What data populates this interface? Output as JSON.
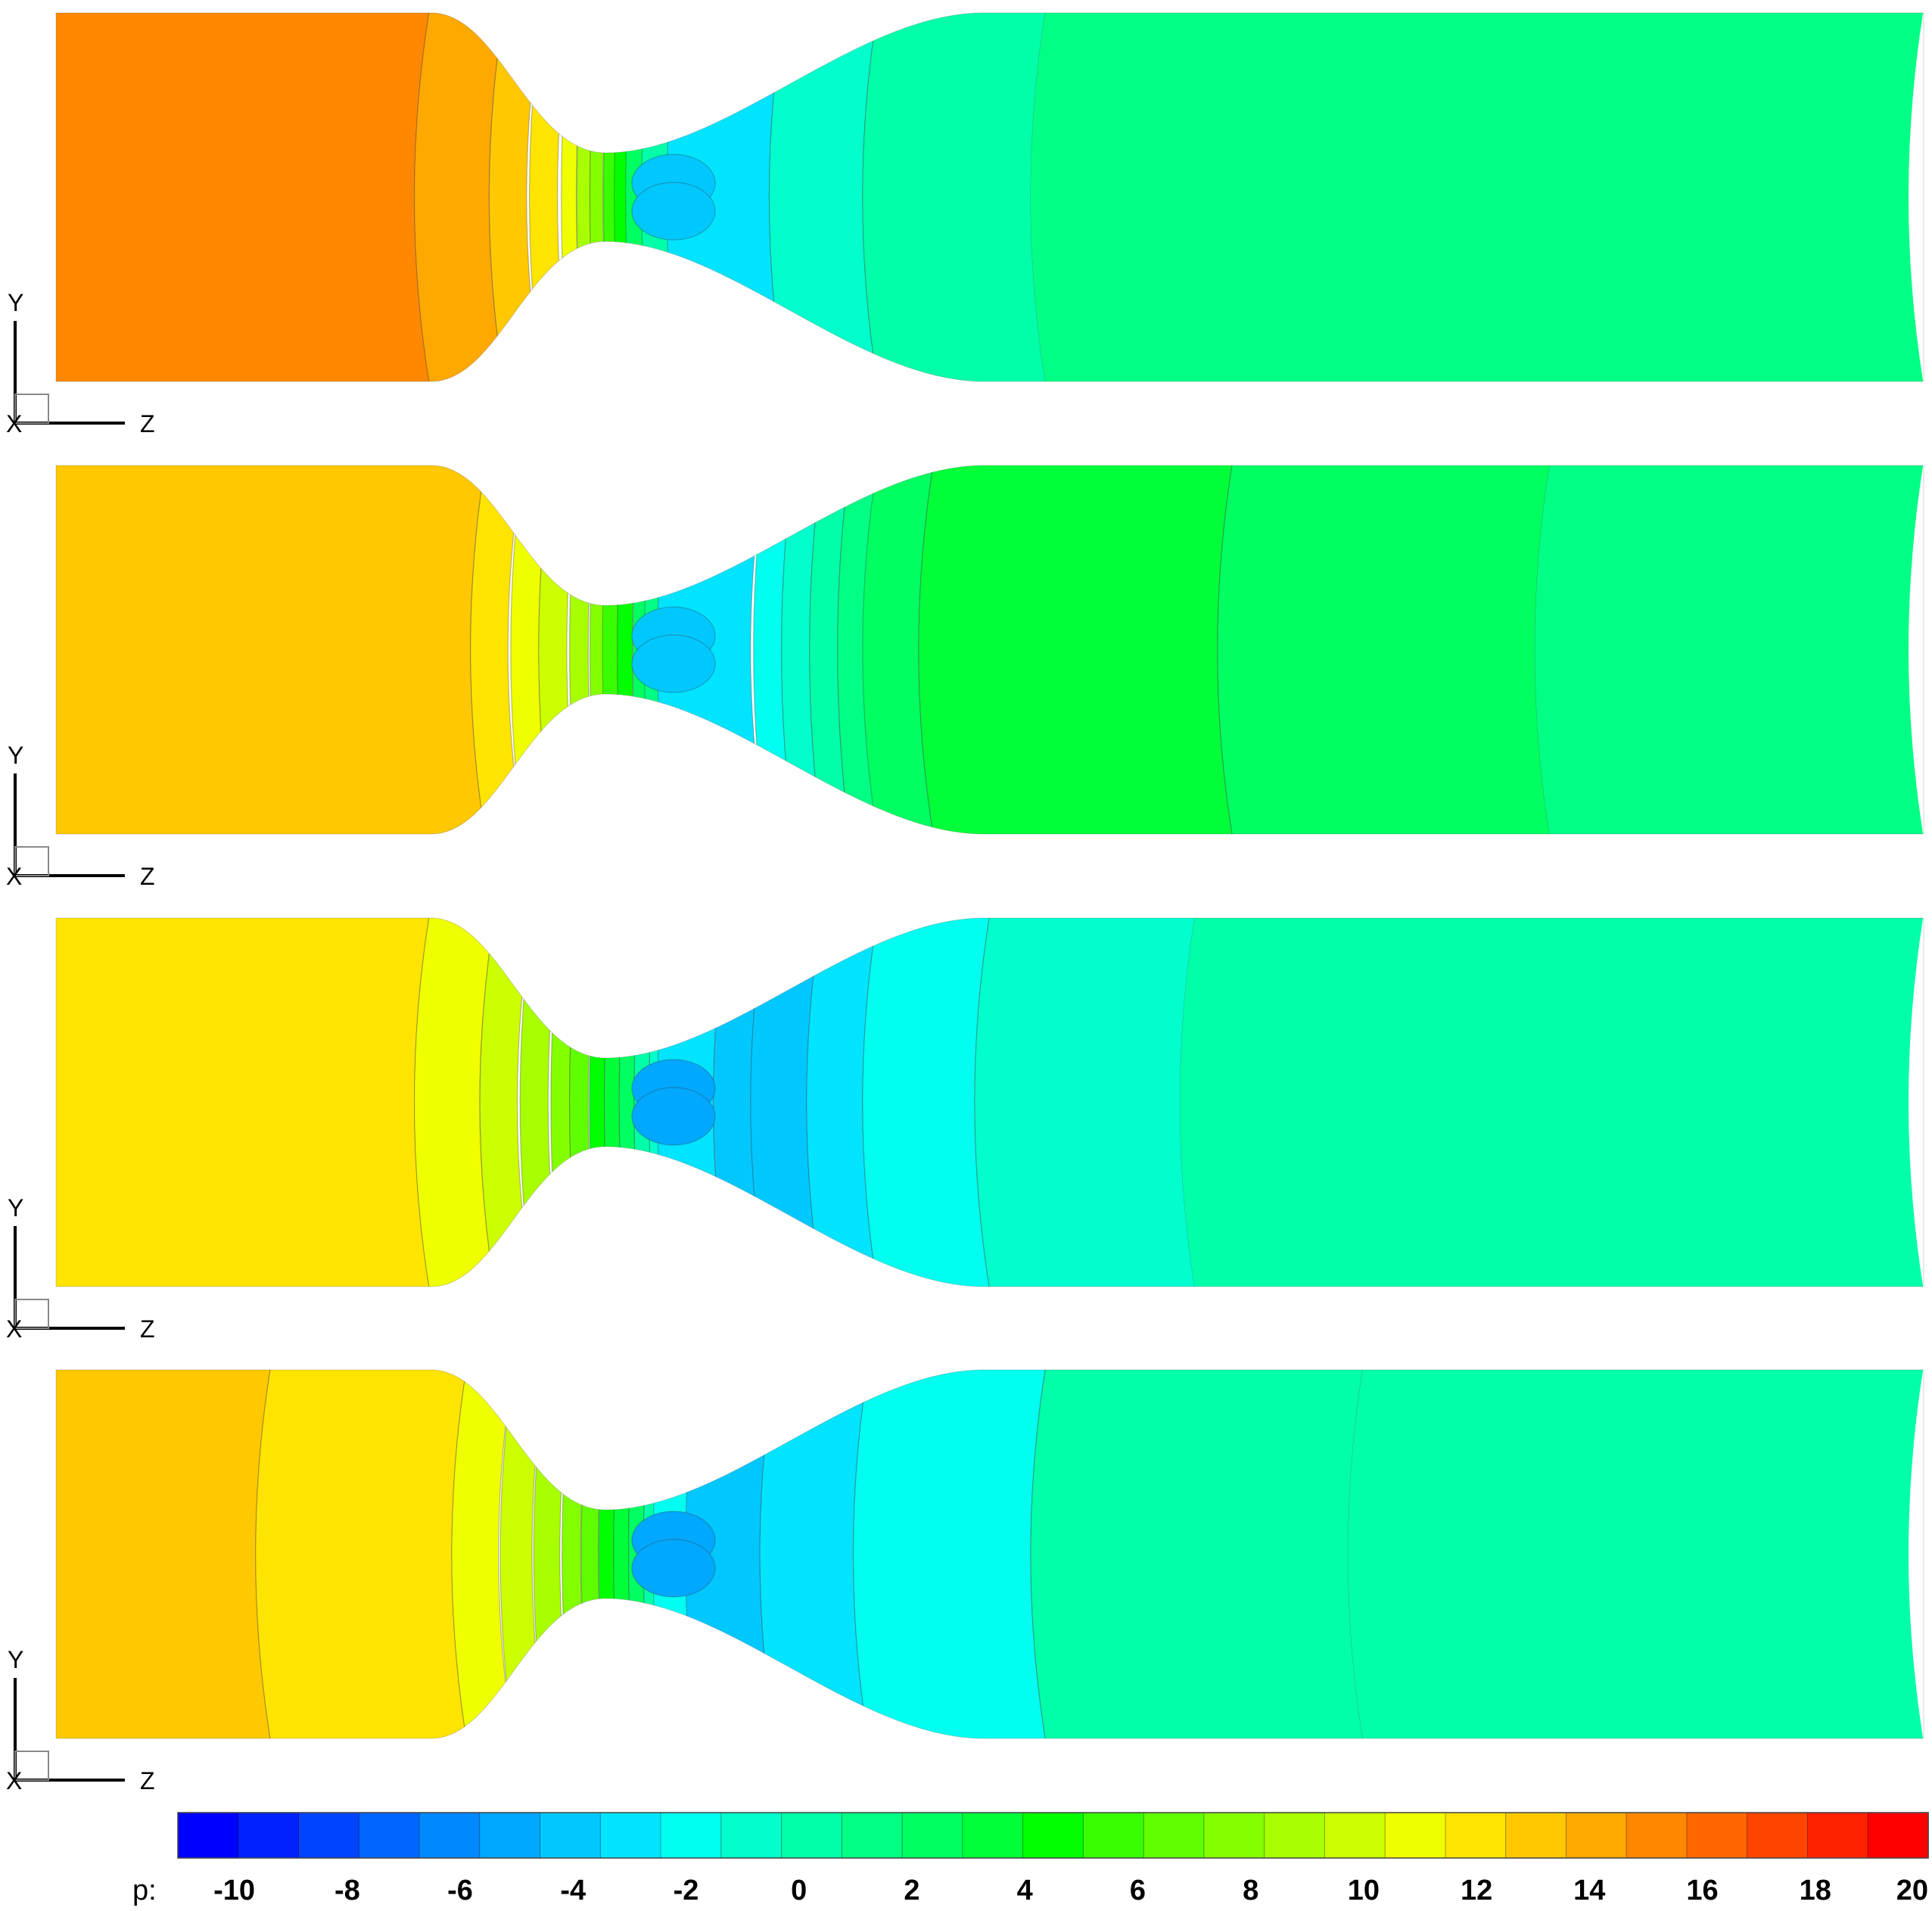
{
  "colormap": [
    "#0000ff",
    "#0022ff",
    "#0044ff",
    "#0066ff",
    "#0088ff",
    "#00a8ff",
    "#00c8ff",
    "#00e4ff",
    "#00fff0",
    "#00ffcc",
    "#00ffa8",
    "#00ff84",
    "#00ff60",
    "#00ff38",
    "#00ff00",
    "#38ff00",
    "#60ff00",
    "#84ff00",
    "#a8ff00",
    "#ccff00",
    "#f0ff00",
    "#ffe400",
    "#ffc800",
    "#ffa800",
    "#ff8800",
    "#ff6600",
    "#ff4400",
    "#ff2200",
    "#ff0000"
  ],
  "panels": [
    {
      "axes": {
        "vertical": "Y",
        "horizontal": "Z",
        "normal": "X"
      },
      "contour_levels": [
        {
          "z_start": 0.0,
          "z_end": 0.2,
          "p": 15.2
        },
        {
          "z_start": 0.2,
          "z_end": 0.24,
          "p": 14.2
        },
        {
          "z_start": 0.24,
          "z_end": 0.26,
          "p": 13.0
        },
        {
          "z_start": 0.26,
          "z_end": 0.275,
          "p": 11.8
        },
        {
          "z_start": 0.275,
          "z_end": 0.283,
          "p": 10.5
        },
        {
          "z_start": 0.283,
          "z_end": 0.29,
          "p": 9.0
        },
        {
          "z_start": 0.29,
          "z_end": 0.297,
          "p": 7.5
        },
        {
          "z_start": 0.297,
          "z_end": 0.303,
          "p": 6.0
        },
        {
          "z_start": 0.303,
          "z_end": 0.31,
          "p": 4.5
        },
        {
          "z_start": 0.31,
          "z_end": 0.32,
          "p": 2.5
        },
        {
          "z_start": 0.32,
          "z_end": 0.335,
          "p": 0.5
        },
        {
          "z_start": 0.335,
          "z_end": 0.39,
          "p": -2.8
        },
        {
          "z_start": 0.39,
          "z_end": 0.44,
          "p": -1.0
        },
        {
          "z_start": 0.44,
          "z_end": 0.53,
          "p": 0.3
        },
        {
          "z_start": 0.53,
          "z_end": 1.0,
          "p": 1.2
        }
      ]
    },
    {
      "axes": {
        "vertical": "Y",
        "horizontal": "Z",
        "normal": "X"
      },
      "contour_levels": [
        {
          "z_start": 0.0,
          "z_end": 0.23,
          "p": 12.8
        },
        {
          "z_start": 0.23,
          "z_end": 0.25,
          "p": 11.6
        },
        {
          "z_start": 0.25,
          "z_end": 0.265,
          "p": 10.6
        },
        {
          "z_start": 0.265,
          "z_end": 0.28,
          "p": 9.6
        },
        {
          "z_start": 0.28,
          "z_end": 0.29,
          "p": 8.4
        },
        {
          "z_start": 0.29,
          "z_end": 0.297,
          "p": 7.2
        },
        {
          "z_start": 0.297,
          "z_end": 0.305,
          "p": 5.8
        },
        {
          "z_start": 0.305,
          "z_end": 0.313,
          "p": 4.2
        },
        {
          "z_start": 0.313,
          "z_end": 0.32,
          "p": 2.6
        },
        {
          "z_start": 0.32,
          "z_end": 0.33,
          "p": 1.0
        },
        {
          "z_start": 0.33,
          "z_end": 0.38,
          "p": -2.6
        },
        {
          "z_start": 0.38,
          "z_end": 0.395,
          "p": -1.6
        },
        {
          "z_start": 0.395,
          "z_end": 0.41,
          "p": -0.6
        },
        {
          "z_start": 0.41,
          "z_end": 0.425,
          "p": 0.4
        },
        {
          "z_start": 0.425,
          "z_end": 0.44,
          "p": 1.4
        },
        {
          "z_start": 0.44,
          "z_end": 0.47,
          "p": 2.4
        },
        {
          "z_start": 0.47,
          "z_end": 0.63,
          "p": 3.4
        },
        {
          "z_start": 0.63,
          "z_end": 0.8,
          "p": 2.8
        },
        {
          "z_start": 0.8,
          "z_end": 1.0,
          "p": 1.6
        }
      ]
    },
    {
      "axes": {
        "vertical": "Y",
        "horizontal": "Z",
        "normal": "X"
      },
      "contour_levels": [
        {
          "z_start": 0.0,
          "z_end": 0.2,
          "p": 11.6
        },
        {
          "z_start": 0.2,
          "z_end": 0.235,
          "p": 10.4
        },
        {
          "z_start": 0.235,
          "z_end": 0.255,
          "p": 9.4
        },
        {
          "z_start": 0.255,
          "z_end": 0.27,
          "p": 8.4
        },
        {
          "z_start": 0.27,
          "z_end": 0.28,
          "p": 7.4
        },
        {
          "z_start": 0.28,
          "z_end": 0.29,
          "p": 6.2
        },
        {
          "z_start": 0.29,
          "z_end": 0.298,
          "p": 5.0
        },
        {
          "z_start": 0.298,
          "z_end": 0.306,
          "p": 3.6
        },
        {
          "z_start": 0.306,
          "z_end": 0.314,
          "p": 2.2
        },
        {
          "z_start": 0.314,
          "z_end": 0.322,
          "p": 0.6
        },
        {
          "z_start": 0.322,
          "z_end": 0.33,
          "p": -1.0
        },
        {
          "z_start": 0.33,
          "z_end": 0.36,
          "p": -3.2
        },
        {
          "z_start": 0.36,
          "z_end": 0.38,
          "p": -4.4
        },
        {
          "z_start": 0.38,
          "z_end": 0.41,
          "p": -3.6
        },
        {
          "z_start": 0.41,
          "z_end": 0.44,
          "p": -2.6
        },
        {
          "z_start": 0.44,
          "z_end": 0.5,
          "p": -1.6
        },
        {
          "z_start": 0.5,
          "z_end": 0.61,
          "p": -0.6
        },
        {
          "z_start": 0.61,
          "z_end": 1.0,
          "p": 0.6
        }
      ]
    },
    {
      "axes": {
        "vertical": "Y",
        "horizontal": "Z",
        "normal": "X"
      },
      "contour_levels": [
        {
          "z_start": 0.0,
          "z_end": 0.115,
          "p": 12.6
        },
        {
          "z_start": 0.115,
          "z_end": 0.22,
          "p": 11.8
        },
        {
          "z_start": 0.22,
          "z_end": 0.245,
          "p": 10.6
        },
        {
          "z_start": 0.245,
          "z_end": 0.262,
          "p": 9.6
        },
        {
          "z_start": 0.262,
          "z_end": 0.276,
          "p": 8.6
        },
        {
          "z_start": 0.276,
          "z_end": 0.286,
          "p": 7.4
        },
        {
          "z_start": 0.286,
          "z_end": 0.295,
          "p": 6.2
        },
        {
          "z_start": 0.295,
          "z_end": 0.303,
          "p": 4.8
        },
        {
          "z_start": 0.303,
          "z_end": 0.311,
          "p": 3.4
        },
        {
          "z_start": 0.311,
          "z_end": 0.319,
          "p": 2.0
        },
        {
          "z_start": 0.319,
          "z_end": 0.327,
          "p": 0.4
        },
        {
          "z_start": 0.327,
          "z_end": 0.345,
          "p": -2.0
        },
        {
          "z_start": 0.345,
          "z_end": 0.385,
          "p": -3.6
        },
        {
          "z_start": 0.385,
          "z_end": 0.435,
          "p": -2.6
        },
        {
          "z_start": 0.435,
          "z_end": 0.53,
          "p": -1.4
        },
        {
          "z_start": 0.53,
          "z_end": 0.7,
          "p": -0.2
        },
        {
          "z_start": 0.7,
          "z_end": 1.0,
          "p": 0.6
        }
      ]
    }
  ],
  "legend": {
    "variable": "p:",
    "min": -11,
    "max": 20,
    "ticks": [
      "-10",
      "-8",
      "-6",
      "-4",
      "-2",
      "0",
      "2",
      "4",
      "6",
      "8",
      "10",
      "12",
      "14",
      "16",
      "18",
      "20"
    ],
    "tick_values": [
      -10,
      -8,
      -6,
      -4,
      -2,
      0,
      2,
      4,
      6,
      8,
      10,
      12,
      14,
      16,
      18,
      20
    ]
  }
}
